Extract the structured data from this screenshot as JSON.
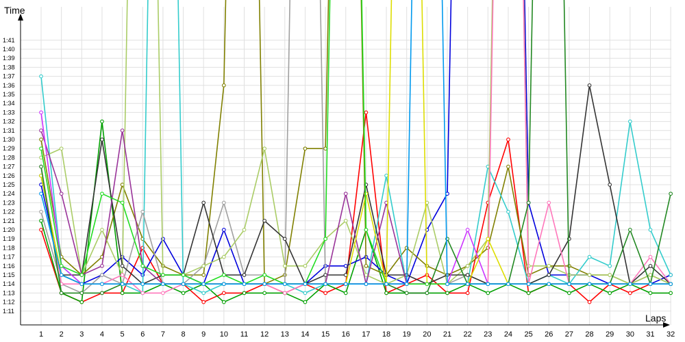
{
  "chart_data": {
    "type": "line",
    "ylabel": "Time",
    "xlabel": "Laps",
    "x": [
      1,
      2,
      3,
      4,
      5,
      6,
      7,
      8,
      9,
      10,
      11,
      12,
      13,
      14,
      15,
      16,
      17,
      18,
      19,
      20,
      21,
      22,
      23,
      24,
      25,
      26,
      27,
      28,
      29,
      30,
      31,
      32
    ],
    "yticks": [
      "1:11",
      "1:12",
      "1:13",
      "1:14",
      "1:15",
      "1:16",
      "1:17",
      "1:18",
      "1:19",
      "1:20",
      "1:21",
      "1:22",
      "1:23",
      "1:24",
      "1:25",
      "1:26",
      "1:27",
      "1:28",
      "1:29",
      "1:30",
      "1:31",
      "1:32",
      "1:33",
      "1:34",
      "1:35",
      "1:36",
      "1:37",
      "1:38",
      "1:39",
      "1:40",
      "1:41"
    ],
    "ylim_seconds": [
      70,
      105
    ],
    "grid": true,
    "series": [
      {
        "color": "#ff0000",
        "values": [
          80,
          73,
          72,
          73,
          73,
          78,
          74,
          74,
          72,
          73,
          73,
          74,
          73,
          74,
          73,
          74,
          93,
          73,
          74,
          75,
          73,
          73,
          83,
          90,
          73,
          74,
          74,
          72,
          74,
          73,
          74,
          74
        ]
      },
      {
        "color": "#00a000",
        "values": [
          81,
          73,
          72,
          92,
          73,
          73,
          74,
          73,
          74,
          72,
          73,
          73,
          73,
          72,
          74,
          73,
          80,
          73,
          73,
          73,
          73,
          74,
          73,
          74,
          73,
          74,
          73,
          74,
          73,
          74,
          73,
          73
        ]
      },
      {
        "color": "#0000dd",
        "values": [
          85,
          75,
          74,
          75,
          77,
          75,
          79,
          75,
          74,
          80,
          74,
          74,
          74,
          74,
          76,
          76,
          77,
          75,
          74,
          80,
          84,
          200,
          200,
          200,
          83,
          75,
          75,
          75,
          74,
          74,
          74,
          75
        ]
      },
      {
        "color": "#808000",
        "values": [
          90,
          77,
          75,
          77,
          85,
          79,
          76,
          75,
          75,
          96,
          200,
          74,
          75,
          89,
          89,
          200,
          76,
          75,
          78,
          76,
          75,
          76,
          78,
          87,
          75,
          76,
          76,
          75,
          75,
          74,
          75,
          74
        ]
      },
      {
        "color": "#33cccc",
        "values": [
          97,
          76,
          74,
          74,
          74,
          73,
          200,
          74,
          73,
          74,
          74,
          74,
          74,
          73,
          74,
          74,
          74,
          86,
          74,
          74,
          74,
          74,
          87,
          82,
          74,
          75,
          74,
          77,
          76,
          92,
          80,
          75
        ]
      },
      {
        "color": "#a0a0a0",
        "values": [
          82,
          74,
          73,
          75,
          74,
          82,
          74,
          74,
          76,
          83,
          75,
          75,
          74,
          200,
          74,
          74,
          74,
          74,
          74,
          74,
          74,
          75,
          74,
          74,
          74,
          74,
          74,
          74,
          74,
          74,
          74,
          74
        ]
      },
      {
        "color": "#aacc66",
        "values": [
          88,
          89,
          75,
          80,
          75,
          200,
          75,
          75,
          76,
          77,
          80,
          89,
          76,
          76,
          79,
          81,
          75,
          74,
          75,
          83,
          74,
          76,
          79,
          200,
          76,
          76,
          75,
          75,
          75,
          74,
          75,
          74
        ]
      },
      {
        "color": "#333333",
        "values": [
          86,
          75,
          75,
          90,
          76,
          74,
          75,
          75,
          83,
          75,
          75,
          81,
          79,
          74,
          75,
          75,
          85,
          75,
          75,
          74,
          75,
          75,
          74,
          74,
          74,
          75,
          79,
          96,
          85,
          74,
          76,
          74
        ]
      },
      {
        "color": "#ff77bb",
        "values": [
          87,
          74,
          74,
          74,
          75,
          73,
          73,
          74,
          74,
          74,
          74,
          74,
          73,
          74,
          74,
          74,
          74,
          74,
          74,
          74,
          74,
          74,
          74,
          200,
          74,
          83,
          74,
          74,
          74,
          74,
          77,
          74
        ]
      },
      {
        "color": "#993399",
        "values": [
          91,
          84,
          75,
          76,
          91,
          76,
          74,
          74,
          74,
          74,
          74,
          74,
          74,
          74,
          74,
          84,
          74,
          83,
          74,
          74,
          74,
          74,
          74,
          74,
          74,
          74,
          74,
          74,
          74,
          74,
          74,
          74
        ]
      },
      {
        "color": "#cc33ff",
        "values": [
          93,
          76,
          74,
          74,
          74,
          74,
          74,
          74,
          74,
          74,
          74,
          74,
          74,
          74,
          74,
          74,
          74,
          74,
          74,
          74,
          74,
          80,
          74,
          74,
          74,
          74,
          74,
          74,
          74,
          74,
          74,
          74
        ]
      },
      {
        "color": "#dddd00",
        "values": [
          86,
          75,
          74,
          74,
          74,
          74,
          74,
          74,
          74,
          74,
          74,
          74,
          74,
          74,
          74,
          74,
          84,
          74,
          200,
          74,
          74,
          74,
          79,
          74,
          74,
          74,
          74,
          74,
          74,
          74,
          74,
          74
        ]
      },
      {
        "color": "#22dd22",
        "values": [
          89,
          76,
          75,
          84,
          83,
          76,
          75,
          75,
          74,
          75,
          74,
          75,
          74,
          74,
          79,
          200,
          80,
          74,
          74,
          74,
          74,
          74,
          74,
          74,
          74,
          74,
          74,
          74,
          74,
          74,
          74,
          74
        ]
      },
      {
        "color": "#228822",
        "values": [
          87,
          73,
          73,
          73,
          74,
          74,
          74,
          74,
          74,
          74,
          74,
          74,
          74,
          74,
          74,
          74,
          74,
          74,
          73,
          73,
          79,
          74,
          74,
          74,
          83,
          200,
          74,
          74,
          74,
          80,
          74,
          84
        ]
      },
      {
        "color": "#0099ee",
        "values": [
          84,
          75,
          74,
          74,
          74,
          74,
          74,
          74,
          74,
          74,
          74,
          74,
          74,
          74,
          74,
          74,
          74,
          74,
          74,
          200,
          74,
          74,
          74,
          74,
          74,
          74,
          74,
          74,
          74,
          74,
          74,
          74
        ]
      }
    ]
  }
}
